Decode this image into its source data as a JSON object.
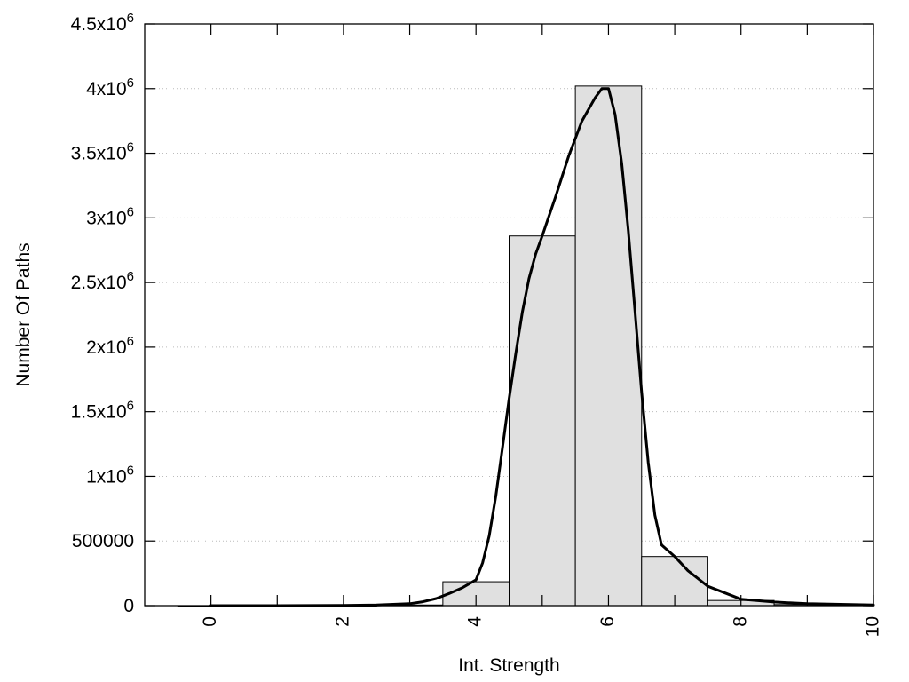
{
  "chart_data": {
    "type": "bar",
    "xlabel": "Int. Strength",
    "ylabel": "Number Of Paths",
    "xlim": [
      -1,
      10
    ],
    "ylim": [
      0,
      4500000
    ],
    "grid": true,
    "legend": "none",
    "x_ticks": [
      {
        "value": 0,
        "label": "0"
      },
      {
        "value": 2,
        "label": "2"
      },
      {
        "value": 4,
        "label": "4"
      },
      {
        "value": 6,
        "label": "6"
      },
      {
        "value": 8,
        "label": "8"
      },
      {
        "value": 10,
        "label": "10"
      }
    ],
    "y_ticks": [
      {
        "value": 0,
        "base": "0",
        "exp": ""
      },
      {
        "value": 500000,
        "base": "500000",
        "exp": ""
      },
      {
        "value": 1000000,
        "base": "1x10",
        "exp": "6"
      },
      {
        "value": 1500000,
        "base": "1.5x10",
        "exp": "6"
      },
      {
        "value": 2000000,
        "base": "2x10",
        "exp": "6"
      },
      {
        "value": 2500000,
        "base": "2.5x10",
        "exp": "6"
      },
      {
        "value": 3000000,
        "base": "3x10",
        "exp": "6"
      },
      {
        "value": 3500000,
        "base": "3.5x10",
        "exp": "6"
      },
      {
        "value": 4000000,
        "base": "4x10",
        "exp": "6"
      },
      {
        "value": 4500000,
        "base": "4.5x10",
        "exp": "6"
      }
    ],
    "bars": [
      {
        "x": 0,
        "value": 0
      },
      {
        "x": 1,
        "value": 0
      },
      {
        "x": 2,
        "value": 0
      },
      {
        "x": 3,
        "value": 5000
      },
      {
        "x": 4,
        "value": 185000
      },
      {
        "x": 5,
        "value": 2860000
      },
      {
        "x": 6,
        "value": 4020000
      },
      {
        "x": 7,
        "value": 380000
      },
      {
        "x": 8,
        "value": 40000
      },
      {
        "x": 9,
        "value": 8000
      }
    ],
    "bar_width": 1,
    "bar_color": "#e0e0e0",
    "curve": {
      "x": [
        0,
        1,
        2,
        2.5,
        3,
        3.2,
        3.4,
        3.6,
        3.8,
        4,
        4.1,
        4.2,
        4.3,
        4.4,
        4.5,
        4.6,
        4.7,
        4.8,
        4.9,
        5,
        5.2,
        5.4,
        5.6,
        5.8,
        5.9,
        6,
        6.1,
        6.2,
        6.3,
        6.4,
        6.5,
        6.6,
        6.7,
        6.8,
        7,
        7.2,
        7.5,
        8,
        8.5,
        9,
        10
      ],
      "y": [
        0,
        0,
        2000,
        5000,
        15000,
        30000,
        55000,
        95000,
        140000,
        200000,
        330000,
        540000,
        850000,
        1220000,
        1600000,
        1950000,
        2270000,
        2530000,
        2720000,
        2860000,
        3160000,
        3480000,
        3750000,
        3930000,
        4000000,
        4000000,
        3800000,
        3420000,
        2900000,
        2280000,
        1650000,
        1110000,
        700000,
        470000,
        380000,
        270000,
        150000,
        50000,
        28000,
        15000,
        5000
      ],
      "color": "#000000"
    }
  }
}
